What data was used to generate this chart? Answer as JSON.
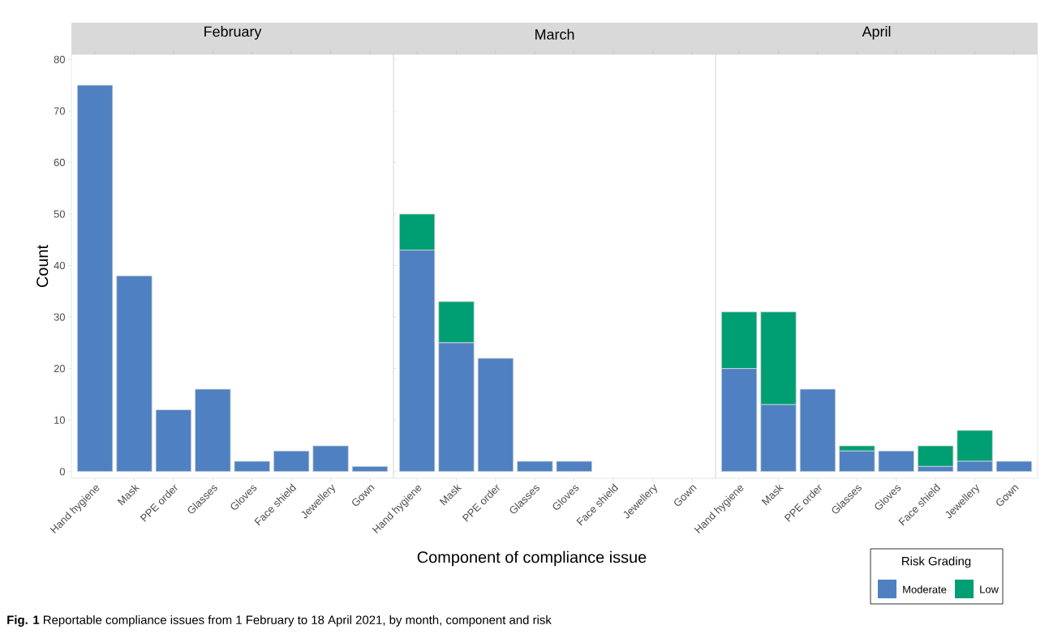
{
  "chart_data": [
    {
      "type": "bar",
      "title": "February",
      "ylabel": "Count",
      "stacked": true,
      "grid": false,
      "categories": [
        "Hand hygiene",
        "Mask",
        "PPE order",
        "Glasses",
        "Gloves",
        "Face shield",
        "Jewellery",
        "Gown"
      ],
      "ylim": [
        -1.3,
        81
      ],
      "yticks": [
        0,
        10,
        20,
        30,
        40,
        50,
        60,
        70,
        80
      ],
      "series": [
        {
          "color": "#4f81c2",
          "values": [
            75,
            38,
            12,
            16,
            2,
            4,
            5,
            1
          ]
        },
        {
          "color": "#009e73",
          "values": [
            null,
            null,
            null,
            null,
            null,
            null,
            null,
            null
          ]
        }
      ],
      "annotations": [
        "**Fig. 1** Reportable compliance issues from 1 February to 18 April 2021, by month, component and risk"
      ]
    },
    {
      "type": "bar",
      "title": "March",
      "xlabel": "Component of compliance issue",
      "stacked": true,
      "grid": false,
      "tick_labels": "x",
      "categories": [
        "Hand hygiene",
        "Mask",
        "PPE order",
        "Glasses",
        "Gloves",
        "Face shield",
        "Jewellery",
        "Gown"
      ],
      "ylim": [
        -1.3,
        81
      ],
      "series": [
        {
          "color": "#4f81c2",
          "values": [
            43,
            25,
            22,
            2,
            2,
            null,
            null,
            null
          ]
        },
        {
          "color": "#009e73",
          "values": [
            7,
            8,
            null,
            null,
            null,
            null,
            null,
            null
          ]
        }
      ]
    },
    {
      "type": "bar",
      "title": "April",
      "stacked": true,
      "grid": false,
      "tick_labels": "x",
      "legend": "bottom right",
      "legend_title": "Risk Grading",
      "categories": [
        "Hand hygiene",
        "Mask",
        "PPE order",
        "Glasses",
        "Gloves",
        "Face shield",
        "Jewellery",
        "Gown"
      ],
      "ylim": [
        -1.3,
        81
      ],
      "series": [
        {
          "name": "Moderate",
          "color": "#4f81c2",
          "values": [
            20,
            13,
            16,
            4,
            4,
            1,
            2,
            2
          ]
        },
        {
          "name": "Low",
          "color": "#009e73",
          "values": [
            11,
            18,
            null,
            1,
            null,
            4,
            6,
            null
          ]
        }
      ]
    }
  ]
}
